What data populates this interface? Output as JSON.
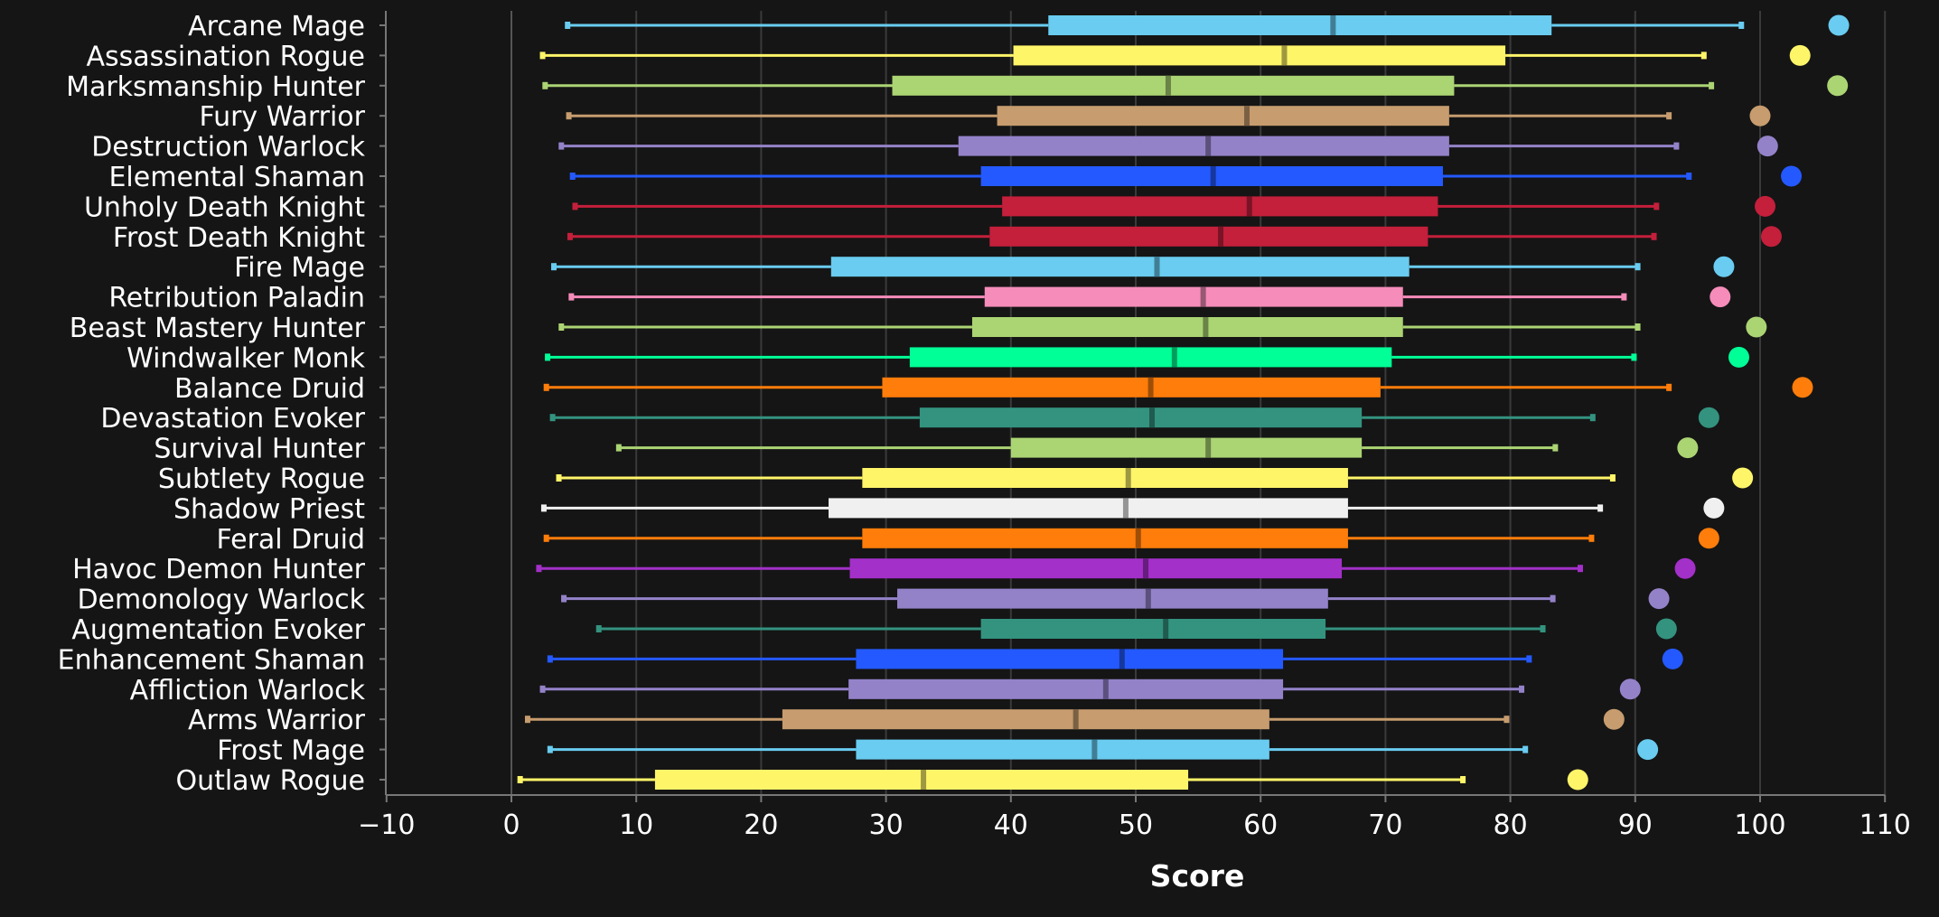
{
  "chart_data": {
    "type": "box",
    "xlabel": "Score",
    "xlim": [
      -10,
      110
    ],
    "xticks": [
      -10,
      0,
      10,
      20,
      30,
      40,
      50,
      60,
      70,
      80,
      90,
      100,
      110
    ],
    "grid": true,
    "series": [
      {
        "name": "Arcane Mage",
        "color": "#69ccf0",
        "min": 4.5,
        "q1": 43,
        "median": 65.8,
        "q3": 83.3,
        "max": 98.5,
        "max_point": 106.3
      },
      {
        "name": "Assassination Rogue",
        "color": "#fff569",
        "min": 2.5,
        "q1": 40.2,
        "median": 61.9,
        "q3": 79.6,
        "max": 95.5,
        "max_point": 103.2
      },
      {
        "name": "Marksmanship Hunter",
        "color": "#abd473",
        "min": 2.7,
        "q1": 30.5,
        "median": 52.6,
        "q3": 75.5,
        "max": 96.1,
        "max_point": 106.2
      },
      {
        "name": "Fury Warrior",
        "color": "#c79c6e",
        "min": 4.6,
        "q1": 38.9,
        "median": 58.9,
        "q3": 75.1,
        "max": 92.7,
        "max_point": 100.0
      },
      {
        "name": "Destruction Warlock",
        "color": "#9482c9",
        "min": 4.0,
        "q1": 35.8,
        "median": 55.8,
        "q3": 75.1,
        "max": 93.3,
        "max_point": 100.6
      },
      {
        "name": "Elemental Shaman",
        "color": "#2459ff",
        "min": 4.9,
        "q1": 37.6,
        "median": 56.2,
        "q3": 74.6,
        "max": 94.3,
        "max_point": 102.5
      },
      {
        "name": "Unholy Death Knight",
        "color": "#c41f3b",
        "min": 5.1,
        "q1": 39.3,
        "median": 59.1,
        "q3": 74.2,
        "max": 91.7,
        "max_point": 100.4
      },
      {
        "name": "Frost Death Knight",
        "color": "#c41f3b",
        "min": 4.7,
        "q1": 38.3,
        "median": 56.8,
        "q3": 73.4,
        "max": 91.5,
        "max_point": 100.9
      },
      {
        "name": "Fire Mage",
        "color": "#69ccf0",
        "min": 3.4,
        "q1": 25.6,
        "median": 51.7,
        "q3": 71.9,
        "max": 90.2,
        "max_point": 97.1
      },
      {
        "name": "Retribution Paladin",
        "color": "#f58cba",
        "min": 4.8,
        "q1": 37.9,
        "median": 55.4,
        "q3": 71.4,
        "max": 89.1,
        "max_point": 96.8
      },
      {
        "name": "Beast Mastery Hunter",
        "color": "#abd473",
        "min": 4.0,
        "q1": 36.9,
        "median": 55.6,
        "q3": 71.4,
        "max": 90.2,
        "max_point": 99.7
      },
      {
        "name": "Windwalker Monk",
        "color": "#00ff96",
        "min": 2.9,
        "q1": 31.9,
        "median": 53.1,
        "q3": 70.5,
        "max": 89.9,
        "max_point": 98.3
      },
      {
        "name": "Balance Druid",
        "color": "#ff7d0a",
        "min": 2.8,
        "q1": 29.7,
        "median": 51.2,
        "q3": 69.6,
        "max": 92.7,
        "max_point": 103.4
      },
      {
        "name": "Devastation Evoker",
        "color": "#33937f",
        "min": 3.3,
        "q1": 32.7,
        "median": 51.3,
        "q3": 68.1,
        "max": 86.6,
        "max_point": 95.9
      },
      {
        "name": "Survival Hunter",
        "color": "#abd473",
        "min": 8.6,
        "q1": 40.0,
        "median": 55.8,
        "q3": 68.1,
        "max": 83.6,
        "max_point": 94.2
      },
      {
        "name": "Subtlety Rogue",
        "color": "#fff569",
        "min": 3.8,
        "q1": 28.1,
        "median": 49.4,
        "q3": 67.0,
        "max": 88.2,
        "max_point": 98.6
      },
      {
        "name": "Shadow Priest",
        "color": "#f0f0f0",
        "min": 2.6,
        "q1": 25.4,
        "median": 49.2,
        "q3": 67.0,
        "max": 87.2,
        "max_point": 96.3
      },
      {
        "name": "Feral Druid",
        "color": "#ff7d0a",
        "min": 2.8,
        "q1": 28.1,
        "median": 50.2,
        "q3": 67.0,
        "max": 86.5,
        "max_point": 95.9
      },
      {
        "name": "Havoc Demon Hunter",
        "color": "#a330c9",
        "min": 2.2,
        "q1": 27.1,
        "median": 50.8,
        "q3": 66.5,
        "max": 85.6,
        "max_point": 94.0
      },
      {
        "name": "Demonology Warlock",
        "color": "#9482c9",
        "min": 4.2,
        "q1": 30.9,
        "median": 51.0,
        "q3": 65.4,
        "max": 83.4,
        "max_point": 91.9
      },
      {
        "name": "Augmentation Evoker",
        "color": "#33937f",
        "min": 7.0,
        "q1": 37.6,
        "median": 52.4,
        "q3": 65.2,
        "max": 82.6,
        "max_point": 92.5
      },
      {
        "name": "Enhancement Shaman",
        "color": "#2459ff",
        "min": 3.1,
        "q1": 27.6,
        "median": 48.9,
        "q3": 61.8,
        "max": 81.5,
        "max_point": 93.0
      },
      {
        "name": "Affliction Warlock",
        "color": "#9482c9",
        "min": 2.5,
        "q1": 27.0,
        "median": 47.6,
        "q3": 61.8,
        "max": 80.9,
        "max_point": 89.6
      },
      {
        "name": "Arms Warrior",
        "color": "#c79c6e",
        "min": 1.3,
        "q1": 21.7,
        "median": 45.2,
        "q3": 60.7,
        "max": 79.7,
        "max_point": 88.3
      },
      {
        "name": "Frost Mage",
        "color": "#69ccf0",
        "min": 3.1,
        "q1": 27.6,
        "median": 46.7,
        "q3": 60.7,
        "max": 81.2,
        "max_point": 91.0
      },
      {
        "name": "Outlaw Rogue",
        "color": "#fff569",
        "min": 0.7,
        "q1": 11.5,
        "median": 33.0,
        "q3": 54.2,
        "max": 76.2,
        "max_point": 85.4
      }
    ]
  }
}
